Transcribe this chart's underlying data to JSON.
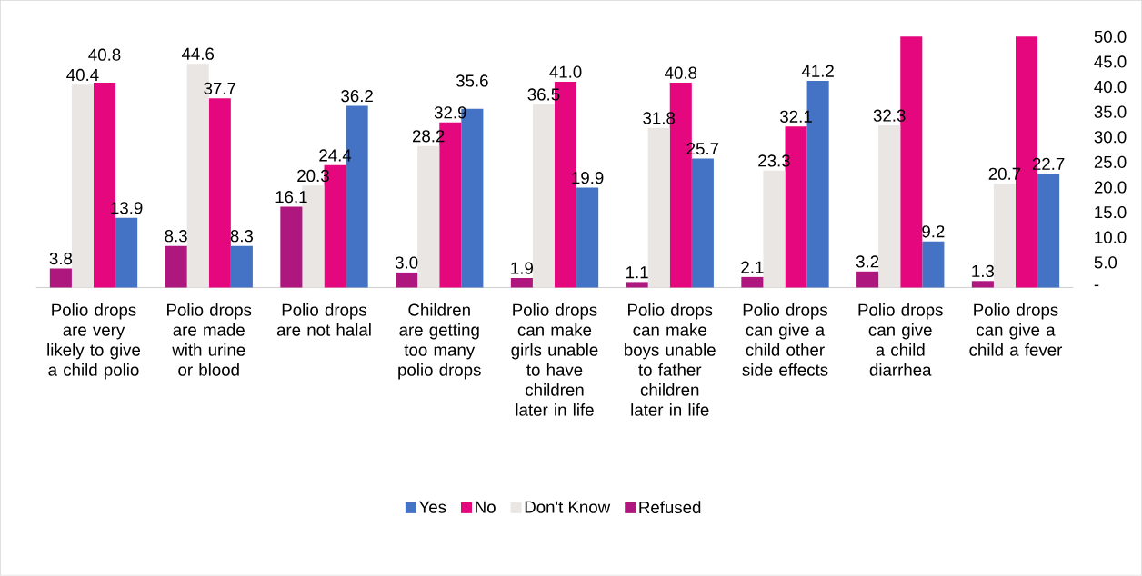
{
  "chart_data": {
    "type": "bar",
    "categories": [
      "Polio drops are very likely to give a child polio",
      "Polio drops are made with urine or blood",
      "Polio drops are not halal",
      "Children are getting too many polio drops",
      "Polio drops can make girls unable to have children later in life",
      "Polio drops can make boys unable to father children later in life",
      "Polio drops can give a child other side effects",
      "Polio drops can give a child diarrhea",
      "Polio drops can give a child a fever"
    ],
    "series": [
      {
        "name": "Yes",
        "color": "#4472c4",
        "values": [
          13.9,
          8.3,
          36.2,
          35.6,
          19.9,
          25.7,
          41.2,
          9.2,
          22.7
        ],
        "value_labels": [
          "13.9",
          "8.3",
          "36.2",
          "35.6",
          "19.9",
          "25.7",
          "41.2",
          "9.2",
          "22.7"
        ]
      },
      {
        "name": "No",
        "color": "#e5077d",
        "values": [
          40.8,
          37.7,
          24.4,
          32.9,
          41.0,
          40.8,
          32.1,
          50,
          50
        ],
        "value_labels": [
          "40.8",
          "37.7",
          "24.4",
          "32.9",
          "41.0",
          "40.8",
          "32.1",
          null,
          null
        ]
      },
      {
        "name": "Don't Know",
        "color": "#e9e6e3",
        "values": [
          40.4,
          44.6,
          20.3,
          28.2,
          36.5,
          31.8,
          23.3,
          32.3,
          20.7
        ],
        "value_labels": [
          "40.4",
          "44.6",
          "20.3",
          "28.2",
          "36.5",
          "31.8",
          "23.3",
          "32.3",
          "20.7"
        ]
      },
      {
        "name": "Refused",
        "color": "#ad177e",
        "values": [
          3.8,
          8.3,
          16.1,
          3.0,
          1.9,
          1.1,
          2.1,
          3.2,
          1.3
        ],
        "value_labels": [
          "3.8",
          "8.3",
          "16.1",
          "3.0",
          "1.9",
          "1.1",
          "2.1",
          "3.2",
          "1.3"
        ]
      }
    ],
    "ylim": [
      0,
      50
    ],
    "yticks": [
      {
        "value": 0,
        "label": "-"
      },
      {
        "value": 5,
        "label": "5.0"
      },
      {
        "value": 10,
        "label": "10.0"
      },
      {
        "value": 15,
        "label": "15.0"
      },
      {
        "value": 20,
        "label": "20.0"
      },
      {
        "value": 25,
        "label": "25.0"
      },
      {
        "value": 30,
        "label": "30.0"
      },
      {
        "value": 35,
        "label": "35.0"
      },
      {
        "value": 40,
        "label": "40.0"
      },
      {
        "value": 45,
        "label": "45.0"
      },
      {
        "value": 50,
        "label": "50.0"
      }
    ],
    "grid": false,
    "legend": "bottom"
  }
}
